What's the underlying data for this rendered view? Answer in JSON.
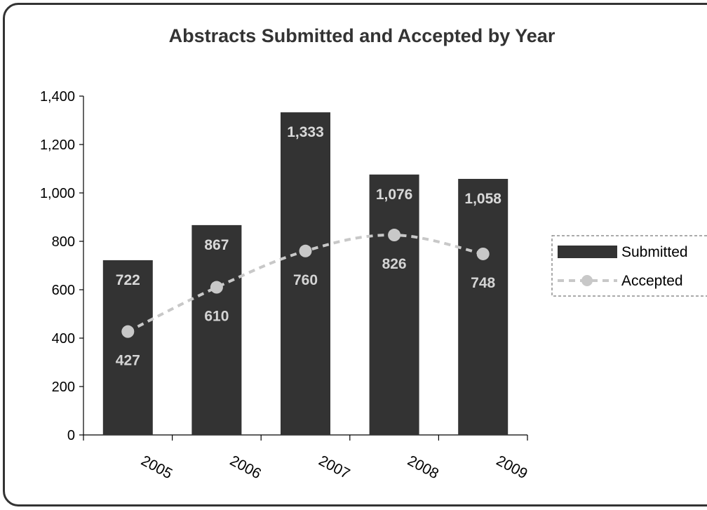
{
  "chart_data": {
    "type": "bar",
    "title": "Abstracts Submitted and Accepted by Year",
    "categories": [
      "2005",
      "2006",
      "2007",
      "2008",
      "2009"
    ],
    "series": [
      {
        "name": "Submitted",
        "type": "bar",
        "values": [
          722,
          867,
          1333,
          1076,
          1058
        ],
        "labels": [
          "722",
          "867",
          "1,333",
          "1,076",
          "1,058"
        ],
        "color": "#333333"
      },
      {
        "name": "Accepted",
        "type": "line",
        "values": [
          427,
          610,
          760,
          826,
          748
        ],
        "labels": [
          "427",
          "610",
          "760",
          "826",
          "748"
        ],
        "color": "#c8c8c8",
        "line_style": "dashed-smooth"
      }
    ],
    "ylim": [
      0,
      1400
    ],
    "yticks": [
      0,
      200,
      400,
      600,
      800,
      1000,
      1200,
      1400
    ],
    "ytick_labels": [
      "0",
      "200",
      "400",
      "600",
      "800",
      "1,000",
      "1,200",
      "1,400"
    ],
    "xlabel": "",
    "ylabel": "",
    "grid": false,
    "legend_position": "right"
  }
}
